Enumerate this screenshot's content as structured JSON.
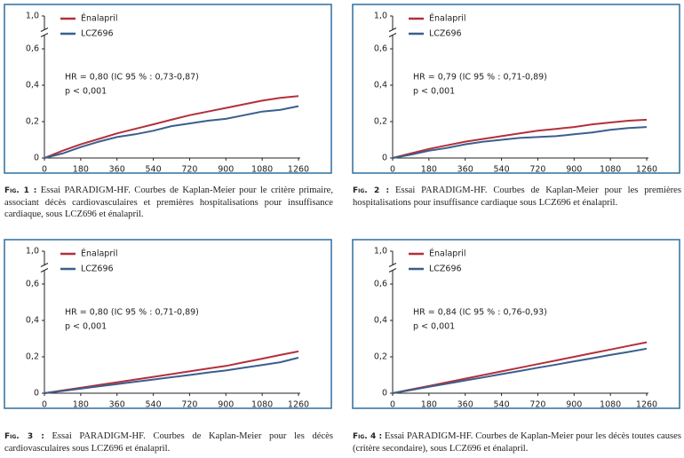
{
  "chart_data": [
    {
      "type": "line",
      "legend": "top-left",
      "axis_break": true,
      "annotations": [
        "HR = 0,80 (IC 95 % : 0,73-0,87)",
        "p < 0,001"
      ],
      "caption_label": "Fig. 1 :",
      "caption": "Essai PARADIGM-HF. Courbes de Kaplan-Meier pour le critère primaire, associant décès cardiovasculaires et premières hospitalisations pour insuffisance cardiaque, sous LCZ696 et énalapril.",
      "x": [
        0,
        90,
        180,
        270,
        360,
        450,
        540,
        630,
        720,
        810,
        900,
        990,
        1080,
        1170,
        1260
      ],
      "xlim": [
        0,
        1260
      ],
      "xticks": [
        0,
        180,
        360,
        540,
        720,
        900,
        1080,
        1260
      ],
      "ylim": [
        0,
        1
      ],
      "yticks": [
        0,
        {
          "value": 0.2,
          "label": "0,2"
        },
        {
          "value": 0.4,
          "label": "0,4"
        },
        {
          "value": 0.6,
          "label": "0,6"
        },
        {
          "value": 1,
          "label": "1,0"
        }
      ],
      "series": [
        {
          "name": "Énalapril",
          "color": "#b3303c",
          "values": [
            0,
            0.04,
            0.075,
            0.105,
            0.135,
            0.16,
            0.185,
            0.21,
            0.235,
            0.255,
            0.275,
            0.295,
            0.315,
            0.33,
            0.34
          ]
        },
        {
          "name": "LCZ696",
          "color": "#3a5f8e",
          "values": [
            0,
            0.025,
            0.06,
            0.09,
            0.115,
            0.13,
            0.15,
            0.175,
            0.19,
            0.205,
            0.215,
            0.235,
            0.255,
            0.265,
            0.285
          ]
        }
      ]
    },
    {
      "type": "line",
      "legend": "top-left",
      "axis_break": true,
      "annotations": [
        "HR = 0,79 (IC 95 % : 0,71-0,89)",
        "p < 0,001"
      ],
      "caption_label": "Fig. 2 :",
      "caption": "Essai PARADIGM-HF. Courbes de Kaplan-Meier pour les premières hospitalisations pour insuffisance cardiaque sous LCZ696 et énalapril.",
      "x": [
        0,
        90,
        180,
        270,
        360,
        450,
        540,
        630,
        720,
        810,
        900,
        990,
        1080,
        1170,
        1260
      ],
      "xlim": [
        0,
        1260
      ],
      "xticks": [
        0,
        180,
        360,
        540,
        720,
        900,
        1080,
        1260
      ],
      "ylim": [
        0,
        1
      ],
      "yticks": [
        0,
        {
          "value": 0.2,
          "label": "0,2"
        },
        {
          "value": 0.4,
          "label": "0,4"
        },
        {
          "value": 0.6,
          "label": "0,6"
        },
        {
          "value": 1,
          "label": "1,0"
        }
      ],
      "series": [
        {
          "name": "Énalapril",
          "color": "#b3303c",
          "values": [
            0,
            0.025,
            0.05,
            0.07,
            0.09,
            0.105,
            0.12,
            0.135,
            0.15,
            0.16,
            0.17,
            0.185,
            0.195,
            0.205,
            0.21
          ]
        },
        {
          "name": "LCZ696",
          "color": "#3a5f8e",
          "values": [
            0,
            0.018,
            0.04,
            0.055,
            0.075,
            0.09,
            0.1,
            0.11,
            0.115,
            0.12,
            0.13,
            0.14,
            0.155,
            0.165,
            0.17
          ]
        }
      ]
    },
    {
      "type": "line",
      "legend": "top-left",
      "axis_break": true,
      "annotations": [
        "HR = 0,80 (IC 95 % : 0,71-0,89)",
        "p < 0,001"
      ],
      "caption_label": "Fig. 3 :",
      "caption": "Essai PARADIGM-HF. Courbes de Kaplan-Meier pour les décès cardiovasculaires sous LCZ696 et énalapril.",
      "x": [
        0,
        90,
        180,
        270,
        360,
        450,
        540,
        630,
        720,
        810,
        900,
        990,
        1080,
        1170,
        1260
      ],
      "xlim": [
        0,
        1260
      ],
      "xticks": [
        0,
        180,
        360,
        540,
        720,
        900,
        1080,
        1260
      ],
      "ylim": [
        0,
        1
      ],
      "yticks": [
        0,
        {
          "value": 0.2,
          "label": "0,2"
        },
        {
          "value": 0.4,
          "label": "0,4"
        },
        {
          "value": 0.6,
          "label": "0,6"
        },
        {
          "value": 1,
          "label": "1,0"
        }
      ],
      "series": [
        {
          "name": "Énalapril",
          "color": "#b3303c",
          "values": [
            0,
            0.015,
            0.03,
            0.045,
            0.06,
            0.075,
            0.09,
            0.105,
            0.12,
            0.135,
            0.15,
            0.17,
            0.19,
            0.21,
            0.23
          ]
        },
        {
          "name": "LCZ696",
          "color": "#3a5f8e",
          "values": [
            0,
            0.012,
            0.025,
            0.038,
            0.05,
            0.063,
            0.075,
            0.088,
            0.1,
            0.113,
            0.125,
            0.14,
            0.155,
            0.17,
            0.195
          ]
        }
      ]
    },
    {
      "type": "line",
      "legend": "top-left",
      "axis_break": true,
      "annotations": [
        "HR = 0,84 (IC 95 % : 0,76-0,93)",
        "p < 0,001"
      ],
      "caption_label": "Fig. 4 :",
      "caption": "Essai PARADIGM-HF. Courbes de Kaplan-Meier pour les décès toutes causes (critère secondaire), sous LCZ696 et énalapril.",
      "x": [
        0,
        90,
        180,
        270,
        360,
        450,
        540,
        630,
        720,
        810,
        900,
        990,
        1080,
        1170,
        1260
      ],
      "xlim": [
        0,
        1260
      ],
      "xticks": [
        0,
        180,
        360,
        540,
        720,
        900,
        1080,
        1260
      ],
      "ylim": [
        0,
        1
      ],
      "yticks": [
        0,
        {
          "value": 0.2,
          "label": "0,2"
        },
        {
          "value": 0.4,
          "label": "0,4"
        },
        {
          "value": 0.6,
          "label": "0,6"
        },
        {
          "value": 1,
          "label": "1,0"
        }
      ],
      "series": [
        {
          "name": "Énalapril",
          "color": "#b3303c",
          "values": [
            0,
            0.02,
            0.04,
            0.06,
            0.08,
            0.1,
            0.12,
            0.14,
            0.16,
            0.18,
            0.2,
            0.22,
            0.24,
            0.26,
            0.28
          ]
        },
        {
          "name": "LCZ696",
          "color": "#3a5f8e",
          "values": [
            0,
            0.017,
            0.035,
            0.052,
            0.07,
            0.087,
            0.105,
            0.122,
            0.14,
            0.157,
            0.175,
            0.192,
            0.21,
            0.227,
            0.245
          ]
        }
      ]
    }
  ]
}
